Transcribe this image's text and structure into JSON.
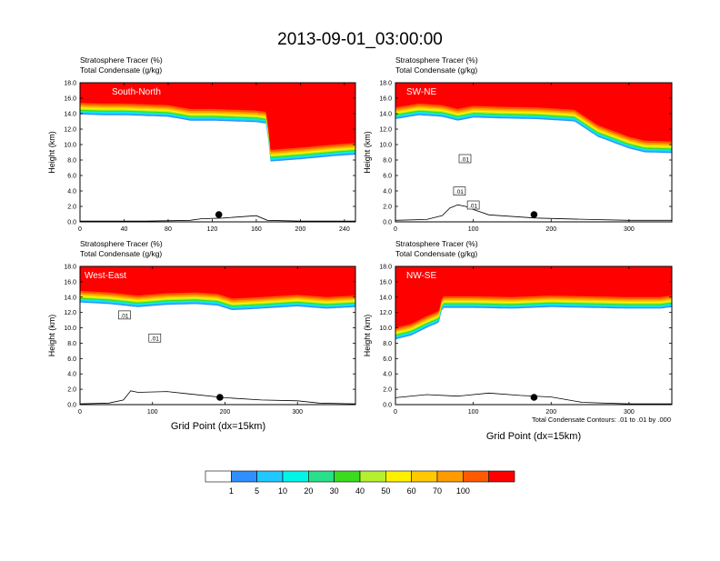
{
  "title": "2013-09-01_03:00:00",
  "variable_labels": [
    "Stratosphere Tracer   (%)",
    "Total Condensate   (g/kg)"
  ],
  "ylabel": "Height (km)",
  "xlabel": "Grid Point (dx=15km)",
  "contour_note": "Total Condensate Contours: .01 to .01 by .000",
  "colorbar": {
    "levels": [
      "1",
      "5",
      "10",
      "20",
      "30",
      "40",
      "50",
      "60",
      "70",
      "100"
    ],
    "colors": [
      "#ffffff",
      "#2f8fff",
      "#21c8ff",
      "#00f5e6",
      "#29e08a",
      "#3bdc1e",
      "#b4f02d",
      "#fff000",
      "#ffc800",
      "#ff9b00",
      "#ff5a00",
      "#ff0000"
    ]
  },
  "chart_data": [
    {
      "type": "heatmap",
      "panel": "South-North",
      "title": "South-North",
      "xlim": [
        0,
        250
      ],
      "xticks": [
        "0",
        "40",
        "80",
        "120",
        "160",
        "200",
        "240"
      ],
      "ylim": [
        0,
        18
      ],
      "yticks": [
        "0.0",
        "2.0",
        "4.0",
        "6.0",
        "8.0",
        "10.0",
        "12.0",
        "14.0",
        "16.0",
        "18.0"
      ],
      "tropopause_km": {
        "x": [
          0,
          20,
          40,
          60,
          80,
          100,
          120,
          140,
          160,
          170,
          172,
          200,
          230,
          250
        ],
        "y": [
          15.4,
          15.3,
          15.3,
          15.2,
          15.1,
          14.6,
          14.6,
          14.5,
          14.4,
          14.2,
          9.3,
          9.6,
          10.0,
          10.2
        ]
      },
      "terrain_km": {
        "x": [
          0,
          60,
          100,
          110,
          130,
          160,
          170,
          200,
          250
        ],
        "y": [
          0.1,
          0.1,
          0.2,
          0.4,
          0.5,
          0.8,
          0.2,
          0.1,
          0.1
        ]
      },
      "marker_x": 126,
      "contour_labels": []
    },
    {
      "type": "heatmap",
      "panel": "SW-NE",
      "title": "SW-NE",
      "xlim": [
        0,
        355
      ],
      "xticks": [
        "0",
        "100",
        "200",
        "300"
      ],
      "ylim": [
        0,
        18
      ],
      "yticks": [
        "0.0",
        "2.0",
        "4.0",
        "6.0",
        "8.0",
        "10.0",
        "12.0",
        "14.0",
        "16.0",
        "18.0"
      ],
      "tropopause_km": {
        "x": [
          0,
          30,
          60,
          80,
          100,
          130,
          180,
          230,
          260,
          300,
          320,
          355
        ],
        "y": [
          14.8,
          15.3,
          15.1,
          14.6,
          15.0,
          14.9,
          14.8,
          14.5,
          12.5,
          11.0,
          10.5,
          10.4
        ]
      },
      "terrain_km": {
        "x": [
          0,
          40,
          60,
          70,
          80,
          90,
          100,
          120,
          180,
          250,
          300,
          355
        ],
        "y": [
          0.2,
          0.3,
          0.8,
          1.8,
          2.2,
          2.0,
          1.6,
          0.9,
          0.5,
          0.3,
          0.2,
          0.2
        ]
      },
      "marker_x": 178,
      "contour_labels": [
        ".01",
        ".01",
        ".01"
      ]
    },
    {
      "type": "heatmap",
      "panel": "West-East",
      "title": "West-East",
      "xlim": [
        0,
        380
      ],
      "xticks": [
        "0",
        "100",
        "200",
        "300"
      ],
      "ylim": [
        0,
        18
      ],
      "yticks": [
        "0.0",
        "2.0",
        "4.0",
        "6.0",
        "8.0",
        "10.0",
        "12.0",
        "14.0",
        "16.0",
        "18.0"
      ],
      "tropopause_km": {
        "x": [
          0,
          40,
          80,
          120,
          160,
          190,
          210,
          250,
          300,
          340,
          380
        ],
        "y": [
          14.8,
          14.6,
          14.2,
          14.5,
          14.6,
          14.4,
          13.8,
          14.0,
          14.3,
          14.0,
          14.2
        ]
      },
      "terrain_km": {
        "x": [
          0,
          40,
          60,
          70,
          80,
          120,
          150,
          200,
          250,
          300,
          330,
          380
        ],
        "y": [
          0.1,
          0.2,
          0.6,
          1.8,
          1.6,
          1.7,
          1.4,
          0.9,
          0.6,
          0.5,
          0.2,
          0.1
        ]
      },
      "marker_x": 193,
      "contour_labels": [
        ".01",
        ".01"
      ]
    },
    {
      "type": "heatmap",
      "panel": "NW-SE",
      "title": "NW-SE",
      "xlim": [
        0,
        355
      ],
      "xticks": [
        "0",
        "100",
        "200",
        "300"
      ],
      "ylim": [
        0,
        18
      ],
      "yticks": [
        "0.0",
        "2.0",
        "4.0",
        "6.0",
        "8.0",
        "10.0",
        "12.0",
        "14.0",
        "16.0",
        "18.0"
      ],
      "tropopause_km": {
        "x": [
          0,
          20,
          40,
          56,
          60,
          100,
          150,
          200,
          250,
          300,
          340,
          355
        ],
        "y": [
          10.0,
          10.5,
          11.5,
          12.2,
          14.1,
          14.1,
          14.0,
          14.2,
          14.1,
          14.0,
          14.0,
          14.2
        ]
      },
      "terrain_km": {
        "x": [
          0,
          40,
          80,
          120,
          160,
          200,
          240,
          300,
          355
        ],
        "y": [
          0.9,
          1.3,
          1.1,
          1.5,
          1.2,
          1.0,
          0.3,
          0.1,
          0.1
        ]
      },
      "marker_x": 178,
      "contour_labels": []
    }
  ]
}
